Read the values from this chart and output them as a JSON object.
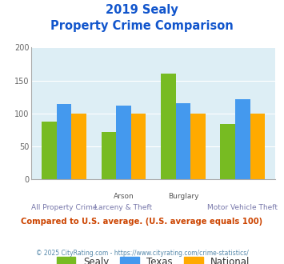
{
  "title_line1": "2019 Sealy",
  "title_line2": "Property Crime Comparison",
  "x_labels_top": [
    "",
    "Arson",
    "Burglary",
    ""
  ],
  "x_labels_bottom": [
    "All Property Crime",
    "Larceny & Theft",
    "",
    "Motor Vehicle Theft"
  ],
  "sealy": [
    88,
    72,
    160,
    84
  ],
  "texas": [
    114,
    112,
    116,
    122
  ],
  "national": [
    100,
    100,
    100,
    100
  ],
  "sealy_color": "#77bb22",
  "texas_color": "#4499ee",
  "national_color": "#ffaa00",
  "bg_color": "#ddeef5",
  "ylim": [
    0,
    200
  ],
  "yticks": [
    0,
    50,
    100,
    150,
    200
  ],
  "title_color": "#1155cc",
  "footer_text": "Compared to U.S. average. (U.S. average equals 100)",
  "footer_color": "#cc4400",
  "copyright_text": "© 2025 CityRating.com - https://www.cityrating.com/crime-statistics/",
  "copyright_color": "#5588aa",
  "legend_labels": [
    "Sealy",
    "Texas",
    "National"
  ],
  "bar_width": 0.25
}
